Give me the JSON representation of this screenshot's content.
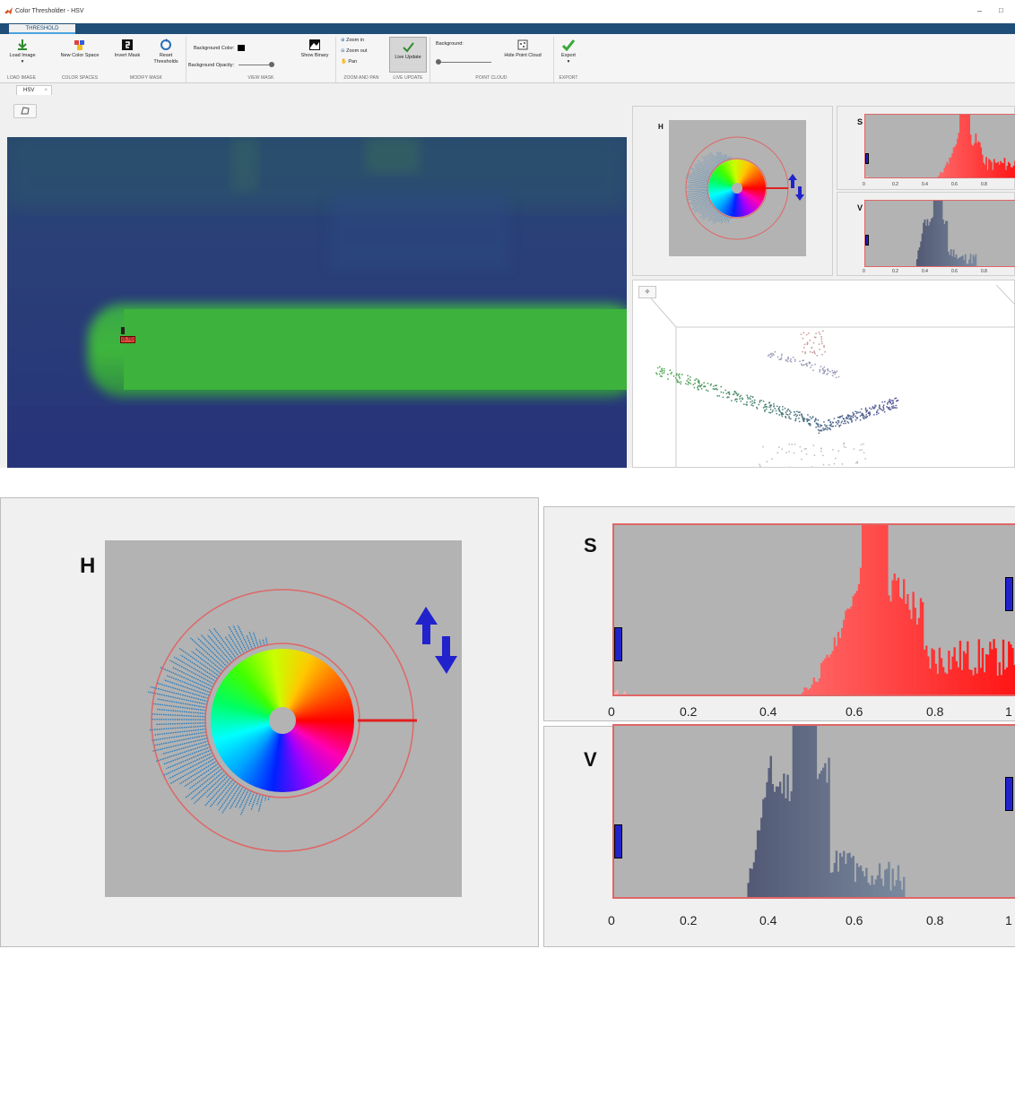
{
  "window": {
    "title": "Color Thresholder - HSV",
    "minimize_glyph": "–",
    "maximize_glyph": "□"
  },
  "ribbon": {
    "tab_label": "THRESHOLD",
    "buttons": {
      "load_image": "Load Image",
      "load_image_arrow": "▾",
      "new_color_space": "New Color Space",
      "invert_mask": "Invert Mask",
      "reset_thresholds_1": "Reset",
      "reset_thresholds_2": "Thresholds",
      "background_color": "Background Color:",
      "background_opacity": "Background Opacity:",
      "show_binary": "Show Binary",
      "zoom_in": "Zoom in",
      "zoom_out": "Zoom out",
      "pan": "Pan",
      "live_update": "Live Update",
      "background": "Background:",
      "hide_point_cloud": "Hide Point Cloud",
      "export": "Export",
      "export_arrow": "▾"
    },
    "groups": {
      "load_image": "LOAD IMAGE",
      "color_spaces": "COLOR SPACES",
      "modify_mask": "MODIFY MASK",
      "view_mask": "VIEW MASK",
      "zoom_and_pan": "ZOOM AND PAN",
      "live_update": "LIVE UPDATE",
      "point_cloud": "POINT CLOUD",
      "export": "EXPORT"
    }
  },
  "document_tab": {
    "label": "HSV",
    "close": "×"
  },
  "image": {
    "pixel_readout": "(0.70)"
  },
  "channels": {
    "h": {
      "label": "H"
    },
    "s": {
      "label": "S",
      "ticks": [
        "0",
        "0.2",
        "0.4",
        "0.6",
        "0.8",
        "1"
      ]
    },
    "v": {
      "label": "V",
      "ticks": [
        "0",
        "0.2",
        "0.4",
        "0.6",
        "0.8",
        "1"
      ]
    }
  },
  "colors": {
    "ribbon_bar": "#1f4e79",
    "threshold_handle": "#2222cc",
    "hue_line": "#e02020",
    "plot_bg": "#b3b3b3",
    "plot_border": "#e06666",
    "hue_histogram": "#2a7fc0"
  }
}
